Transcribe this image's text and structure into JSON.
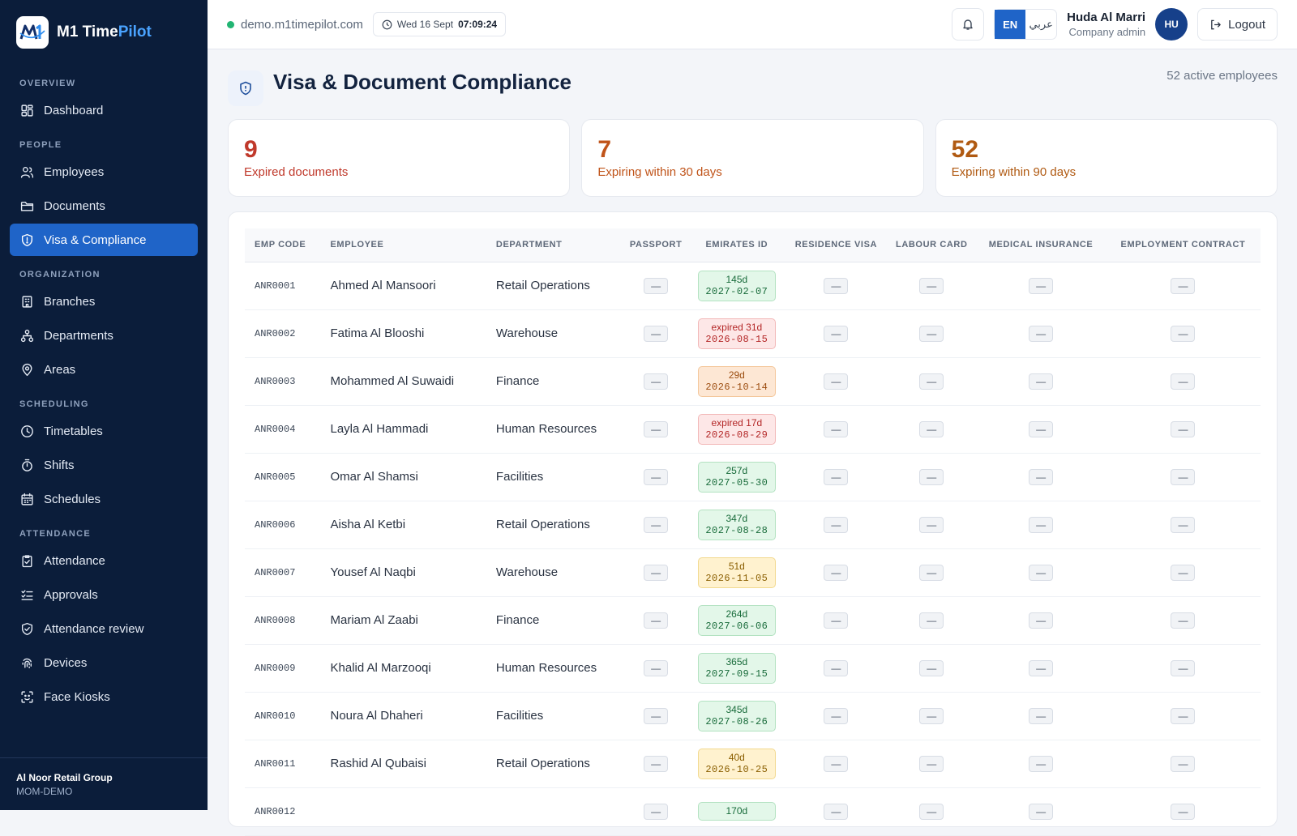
{
  "brand": {
    "name_main": "M1 Time",
    "name_accent": "Pilot",
    "logo_text": "M1"
  },
  "sidebar": {
    "sections": [
      {
        "title": "OVERVIEW",
        "items": [
          {
            "label": "Dashboard",
            "icon": "dashboard-icon"
          }
        ]
      },
      {
        "title": "PEOPLE",
        "items": [
          {
            "label": "Employees",
            "icon": "users-icon"
          },
          {
            "label": "Documents",
            "icon": "folder-icon"
          },
          {
            "label": "Visa & Compliance",
            "icon": "shield-icon",
            "active": true
          }
        ]
      },
      {
        "title": "ORGANIZATION",
        "items": [
          {
            "label": "Branches",
            "icon": "building-icon"
          },
          {
            "label": "Departments",
            "icon": "hierarchy-icon"
          },
          {
            "label": "Areas",
            "icon": "map-pin-icon"
          }
        ]
      },
      {
        "title": "SCHEDULING",
        "items": [
          {
            "label": "Timetables",
            "icon": "clock-icon"
          },
          {
            "label": "Shifts",
            "icon": "timer-icon"
          },
          {
            "label": "Schedules",
            "icon": "calendar-icon"
          }
        ]
      },
      {
        "title": "ATTENDANCE",
        "items": [
          {
            "label": "Attendance",
            "icon": "clipboard-check-icon"
          },
          {
            "label": "Approvals",
            "icon": "checklist-icon"
          },
          {
            "label": "Attendance review",
            "icon": "shield-check-icon"
          },
          {
            "label": "Devices",
            "icon": "fingerprint-icon"
          },
          {
            "label": "Face Kiosks",
            "icon": "face-scan-icon"
          }
        ]
      }
    ],
    "org_name": "Al Noor Retail Group",
    "org_code": "MOM-DEMO"
  },
  "header": {
    "domain": "demo.m1timepilot.com",
    "date": "Wed 16 Sept",
    "time": "07:09:24",
    "lang_en": "EN",
    "lang_ar": "عربي",
    "user_name": "Huda Al Marri",
    "user_role": "Company admin",
    "avatar_initials": "HU",
    "logout_label": "Logout"
  },
  "page": {
    "title": "Visa & Document Compliance",
    "active_employees": "52 active employees"
  },
  "stats": [
    {
      "value": "9",
      "label": "Expired documents",
      "color": "#c0392b"
    },
    {
      "value": "7",
      "label": "Expiring within 30 days",
      "color": "#c0541a"
    },
    {
      "value": "52",
      "label": "Expiring within 90 days",
      "color": "#b05a12"
    }
  ],
  "table": {
    "columns": [
      "EMP CODE",
      "EMPLOYEE",
      "DEPARTMENT",
      "PASSPORT",
      "EMIRATES ID",
      "RESIDENCE VISA",
      "LABOUR CARD",
      "MEDICAL INSURANCE",
      "EMPLOYMENT CONTRACT"
    ],
    "empty_marker": "—",
    "rows": [
      {
        "code": "ANR0001",
        "name": "Ahmed Al Mansoori",
        "dept": "Retail Operations",
        "eid_status": "ok",
        "eid_top": "145d",
        "eid_date": "2027-02-07"
      },
      {
        "code": "ANR0002",
        "name": "Fatima Al Blooshi",
        "dept": "Warehouse",
        "eid_status": "expired",
        "eid_top": "expired 31d",
        "eid_date": "2026-08-15"
      },
      {
        "code": "ANR0003",
        "name": "Mohammed Al Suwaidi",
        "dept": "Finance",
        "eid_status": "warn30",
        "eid_top": "29d",
        "eid_date": "2026-10-14"
      },
      {
        "code": "ANR0004",
        "name": "Layla Al Hammadi",
        "dept": "Human Resources",
        "eid_status": "expired",
        "eid_top": "expired 17d",
        "eid_date": "2026-08-29"
      },
      {
        "code": "ANR0005",
        "name": "Omar Al Shamsi",
        "dept": "Facilities",
        "eid_status": "ok",
        "eid_top": "257d",
        "eid_date": "2027-05-30"
      },
      {
        "code": "ANR0006",
        "name": "Aisha Al Ketbi",
        "dept": "Retail Operations",
        "eid_status": "ok",
        "eid_top": "347d",
        "eid_date": "2027-08-28"
      },
      {
        "code": "ANR0007",
        "name": "Yousef Al Naqbi",
        "dept": "Warehouse",
        "eid_status": "warn90",
        "eid_top": "51d",
        "eid_date": "2026-11-05"
      },
      {
        "code": "ANR0008",
        "name": "Mariam Al Zaabi",
        "dept": "Finance",
        "eid_status": "ok",
        "eid_top": "264d",
        "eid_date": "2027-06-06"
      },
      {
        "code": "ANR0009",
        "name": "Khalid Al Marzooqi",
        "dept": "Human Resources",
        "eid_status": "ok",
        "eid_top": "365d",
        "eid_date": "2027-09-15"
      },
      {
        "code": "ANR0010",
        "name": "Noura Al Dhaheri",
        "dept": "Facilities",
        "eid_status": "ok",
        "eid_top": "345d",
        "eid_date": "2027-08-26"
      },
      {
        "code": "ANR0011",
        "name": "Rashid Al Qubaisi",
        "dept": "Retail Operations",
        "eid_status": "warn90",
        "eid_top": "40d",
        "eid_date": "2026-10-25"
      },
      {
        "code": "ANR0012",
        "name": "",
        "dept": "",
        "eid_status": "ok",
        "eid_top": "170d",
        "eid_date": ""
      }
    ]
  }
}
